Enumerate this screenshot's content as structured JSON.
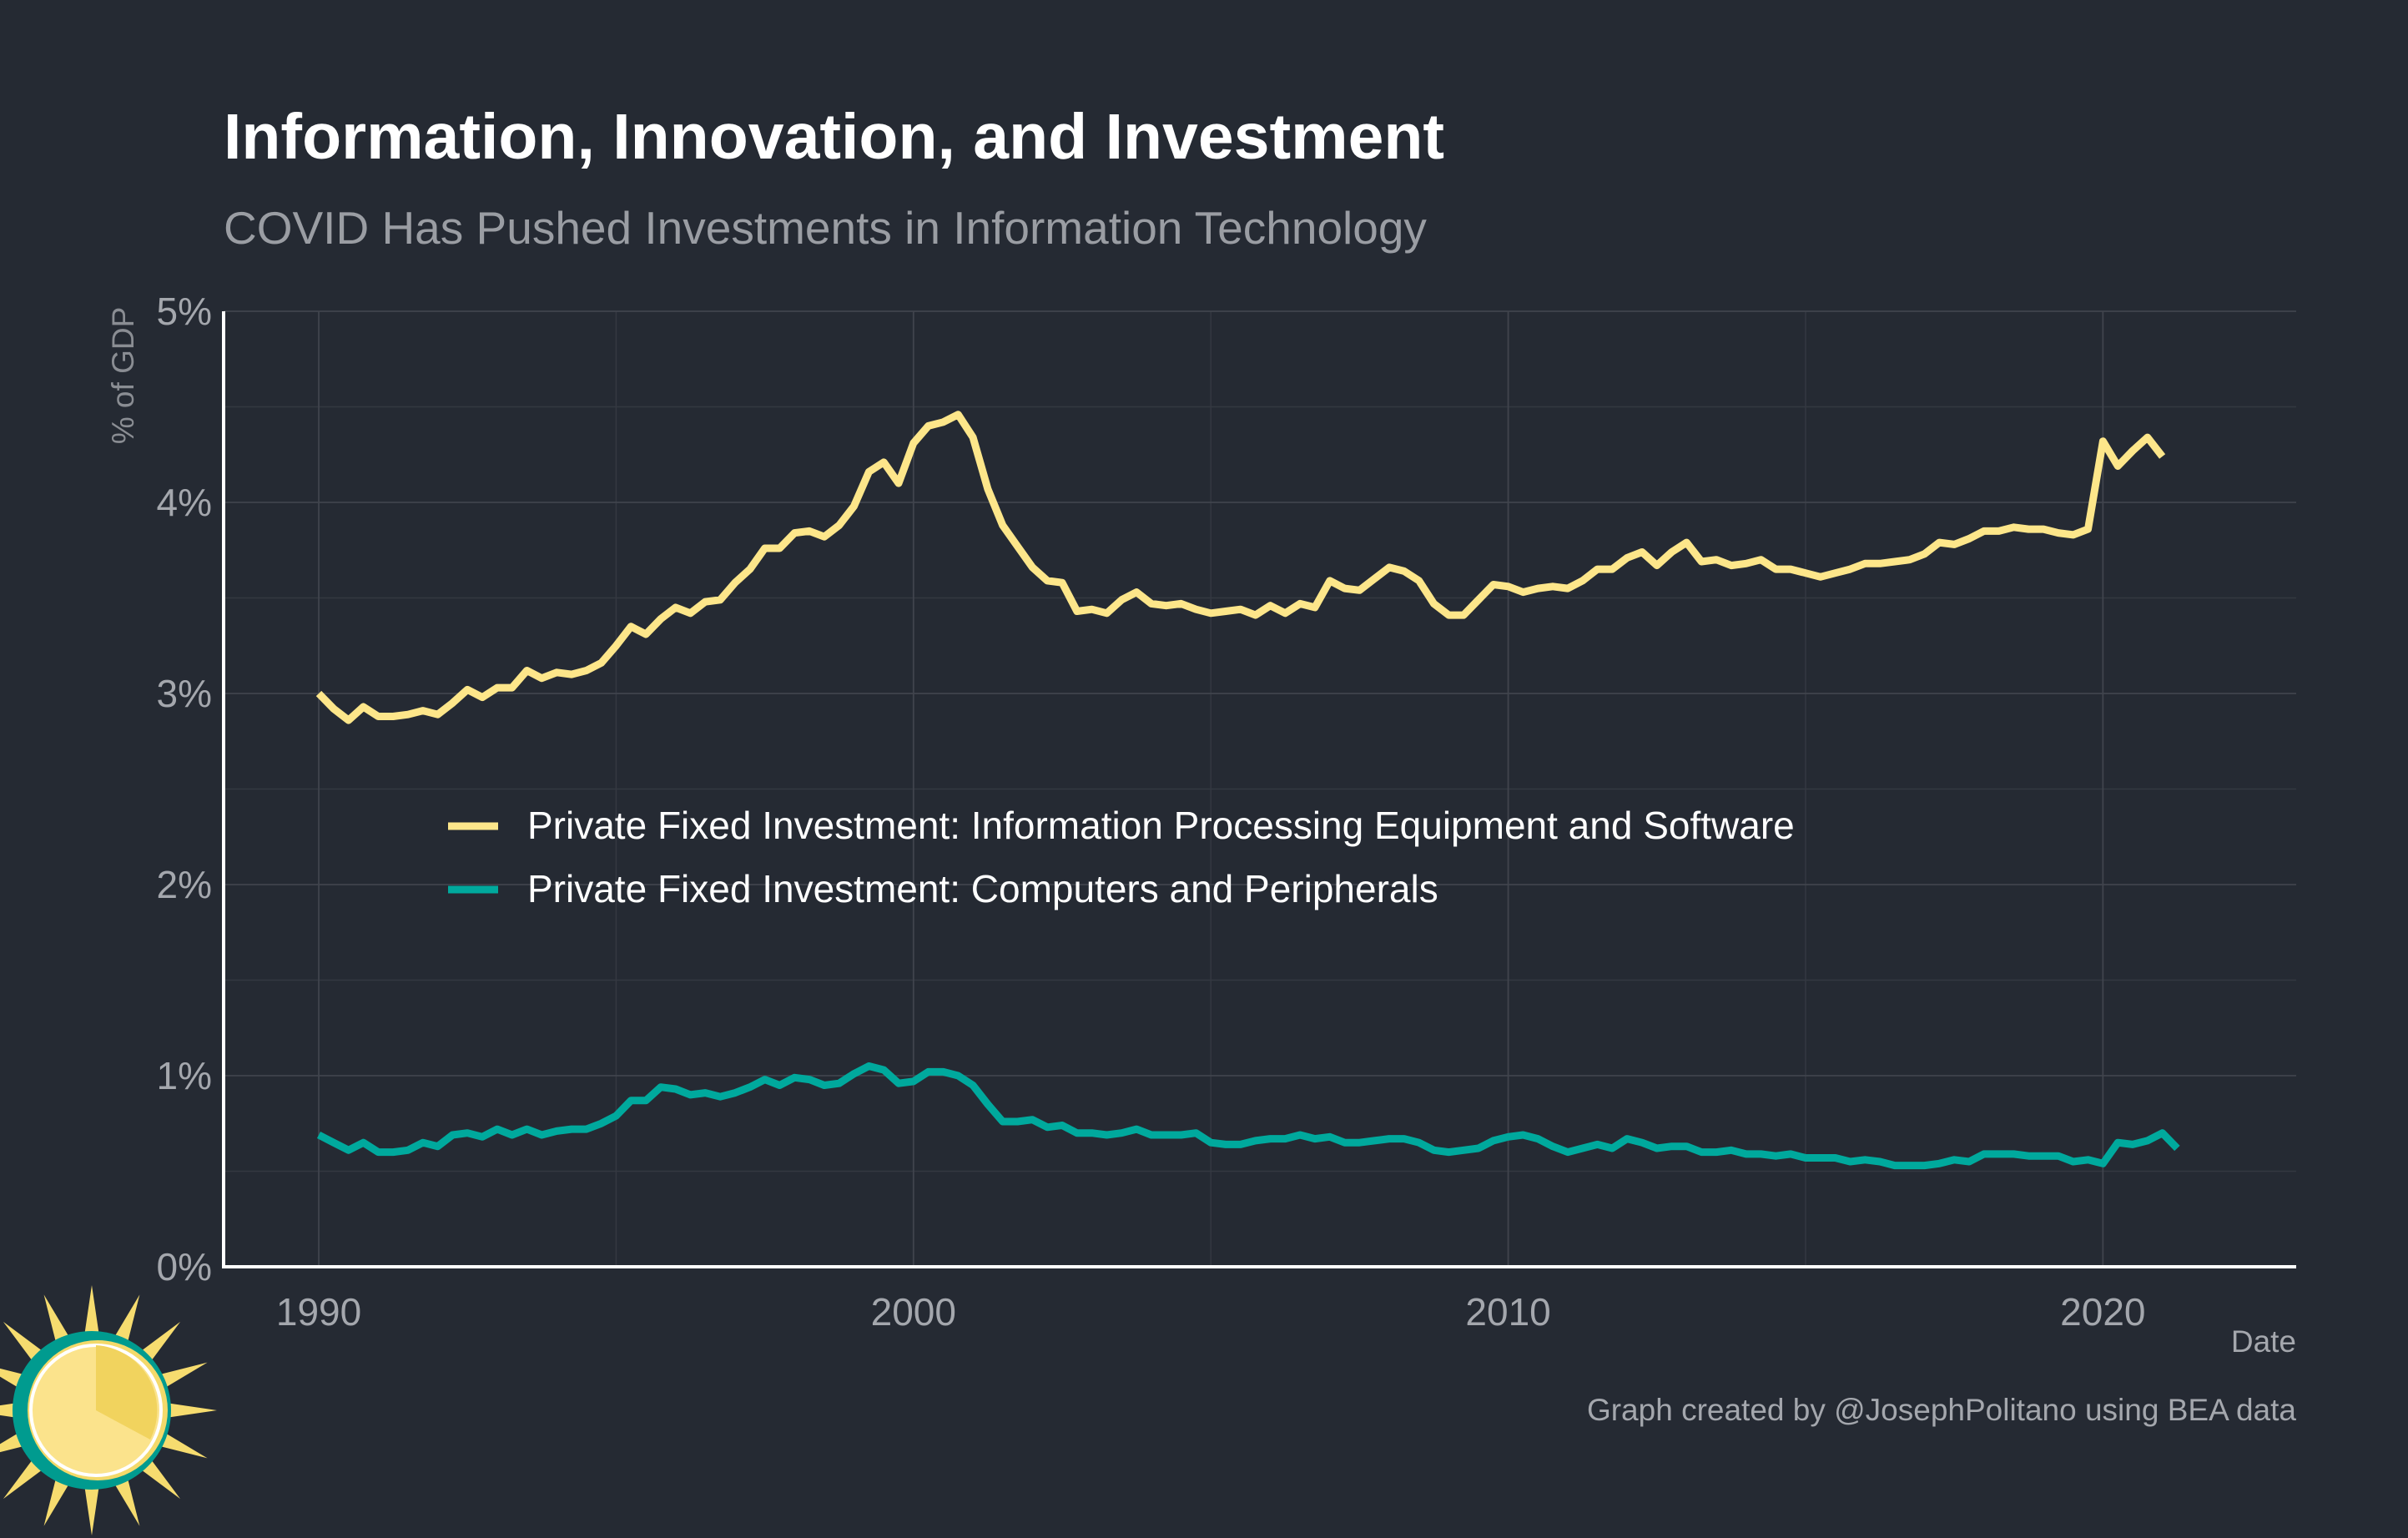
{
  "colors": {
    "background": "#252a33",
    "series1": "#fde68a",
    "series2": "#00a99d",
    "grid": "#40444d"
  },
  "logo": {
    "icon": "sun-logo-icon"
  },
  "chart_data": {
    "type": "line",
    "title": "Information, Innovation, and Investment",
    "subtitle": "COVID Has Pushed Investments in Information Technology",
    "xlabel": "Date",
    "ylabel": "% of GDP",
    "caption": "Graph created by @JosephPolitano using BEA data",
    "xlim": [
      1988.4,
      2023.25
    ],
    "ylim": [
      0,
      5
    ],
    "x_ticks": [
      1990,
      2000,
      2010,
      2020
    ],
    "x_tick_labels": [
      "1990",
      "2000",
      "2010",
      "2020"
    ],
    "y_ticks": [
      0,
      1,
      2,
      3,
      4,
      5
    ],
    "y_tick_labels": [
      "0%",
      "1%",
      "2%",
      "3%",
      "4%",
      "5%"
    ],
    "grid": true,
    "legend_position": "middle-left",
    "x_start": 1990.0,
    "x_step": 0.25,
    "series": [
      {
        "name": "Private Fixed Investment: Information Processing Equipment and Software",
        "color": "#fde68a",
        "values": [
          3.0,
          2.92,
          2.86,
          2.93,
          2.88,
          2.88,
          2.89,
          2.91,
          2.89,
          2.95,
          3.02,
          2.98,
          3.03,
          3.03,
          3.12,
          3.08,
          3.11,
          3.1,
          3.12,
          3.16,
          3.25,
          3.35,
          3.31,
          3.39,
          3.45,
          3.42,
          3.48,
          3.49,
          3.58,
          3.65,
          3.76,
          3.76,
          3.84,
          3.85,
          3.82,
          3.88,
          3.98,
          4.16,
          4.21,
          4.1,
          4.31,
          4.4,
          4.42,
          4.46,
          4.34,
          4.07,
          3.88,
          3.77,
          3.66,
          3.59,
          3.58,
          3.43,
          3.44,
          3.42,
          3.49,
          3.53,
          3.47,
          3.46,
          3.47,
          3.44,
          3.42,
          3.43,
          3.44,
          3.41,
          3.46,
          3.42,
          3.47,
          3.45,
          3.59,
          3.55,
          3.54,
          3.6,
          3.66,
          3.64,
          3.59,
          3.47,
          3.41,
          3.41,
          3.49,
          3.57,
          3.56,
          3.53,
          3.55,
          3.56,
          3.55,
          3.59,
          3.65,
          3.65,
          3.71,
          3.74,
          3.67,
          3.74,
          3.79,
          3.69,
          3.7,
          3.67,
          3.68,
          3.7,
          3.65,
          3.65,
          3.63,
          3.61,
          3.63,
          3.65,
          3.68,
          3.68,
          3.69,
          3.7,
          3.73,
          3.79,
          3.78,
          3.81,
          3.85,
          3.85,
          3.87,
          3.86,
          3.86,
          3.84,
          3.83,
          3.86,
          4.32,
          4.19,
          4.27,
          4.34,
          4.24
        ]
      },
      {
        "name": "Private Fixed Investment: Computers and Peripherals",
        "color": "#00a99d",
        "values": [
          0.69,
          0.65,
          0.61,
          0.65,
          0.6,
          0.6,
          0.61,
          0.65,
          0.63,
          0.69,
          0.7,
          0.68,
          0.72,
          0.69,
          0.72,
          0.69,
          0.71,
          0.72,
          0.72,
          0.75,
          0.79,
          0.87,
          0.87,
          0.94,
          0.93,
          0.9,
          0.91,
          0.89,
          0.91,
          0.94,
          0.98,
          0.95,
          0.99,
          0.98,
          0.95,
          0.96,
          1.01,
          1.05,
          1.03,
          0.96,
          0.97,
          1.02,
          1.02,
          1.0,
          0.95,
          0.85,
          0.76,
          0.76,
          0.77,
          0.73,
          0.74,
          0.7,
          0.7,
          0.69,
          0.7,
          0.72,
          0.69,
          0.69,
          0.69,
          0.7,
          0.65,
          0.64,
          0.64,
          0.66,
          0.67,
          0.67,
          0.69,
          0.67,
          0.68,
          0.65,
          0.65,
          0.66,
          0.67,
          0.67,
          0.65,
          0.61,
          0.6,
          0.61,
          0.62,
          0.66,
          0.68,
          0.69,
          0.67,
          0.63,
          0.6,
          0.62,
          0.64,
          0.62,
          0.67,
          0.65,
          0.62,
          0.63,
          0.63,
          0.6,
          0.6,
          0.61,
          0.59,
          0.59,
          0.58,
          0.59,
          0.57,
          0.57,
          0.57,
          0.55,
          0.56,
          0.55,
          0.53,
          0.53,
          0.53,
          0.54,
          0.56,
          0.55,
          0.59,
          0.59,
          0.59,
          0.58,
          0.58,
          0.58,
          0.55,
          0.56,
          0.54,
          0.65,
          0.64,
          0.66,
          0.7,
          0.62
        ]
      }
    ]
  }
}
